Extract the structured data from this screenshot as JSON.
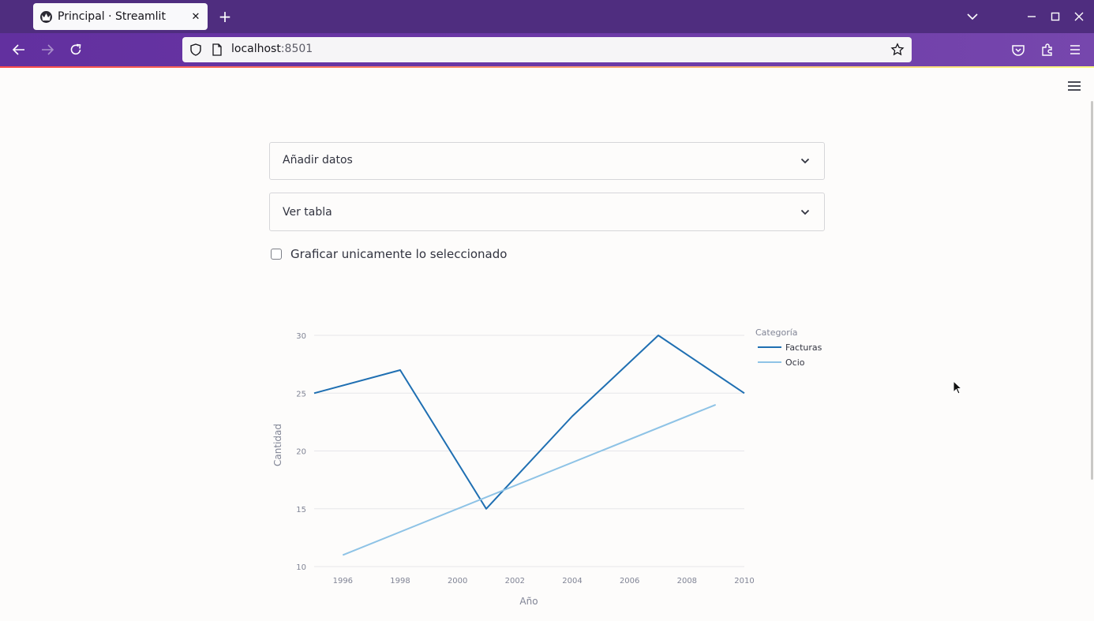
{
  "browser": {
    "tab_title": "Principal · Streamlit",
    "url_host": "localhost",
    "url_port": ":8501"
  },
  "app": {
    "expanders": [
      {
        "label": "Añadir datos"
      },
      {
        "label": "Ver tabla"
      }
    ],
    "checkbox": {
      "label": "Graficar unicamente lo seleccionado",
      "checked": false
    }
  },
  "chart_data": {
    "type": "line",
    "xlabel": "Año",
    "ylabel": "Cantidad",
    "xlim": [
      1995,
      2010
    ],
    "ylim": [
      10,
      30
    ],
    "x_ticks": [
      1996,
      1998,
      2000,
      2002,
      2004,
      2006,
      2008,
      2010
    ],
    "y_ticks": [
      10,
      15,
      20,
      25,
      30
    ],
    "grid": true,
    "legend": {
      "title": "Categoría",
      "position": "top-right"
    },
    "series": [
      {
        "name": "Facturas",
        "color": "#1f6fb2",
        "x": [
          1995,
          1998,
          2001,
          2004,
          2007,
          2010
        ],
        "y": [
          25,
          27,
          15,
          23,
          30,
          25
        ]
      },
      {
        "name": "Ocio",
        "color": "#8ec3e6",
        "x": [
          1996,
          2009
        ],
        "y": [
          11,
          24
        ]
      }
    ]
  }
}
